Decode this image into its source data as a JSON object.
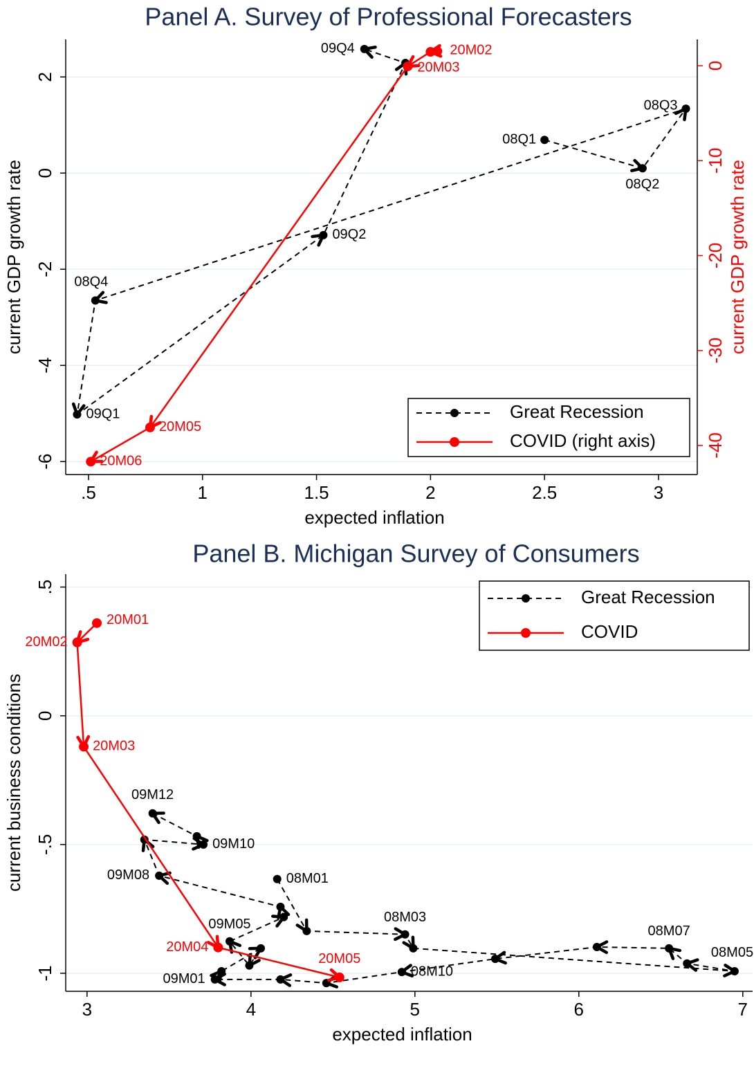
{
  "chart_data": [
    {
      "type": "line",
      "title": "Panel A. Survey of Professional Forecasters",
      "xlabel": "expected inflation",
      "ylabel": "current GDP growth rate",
      "y2label": "current GDP growth rate",
      "xlim": [
        0.4,
        3.17
      ],
      "xticks": [
        {
          "value": 0.5,
          "label": ".5"
        },
        1,
        1.5,
        2,
        2.5,
        3
      ],
      "ylim": [
        -6.27,
        2.78
      ],
      "yticks": [
        -6,
        -4,
        -2,
        0,
        2
      ],
      "y2lim": [
        -43.06,
        2.77
      ],
      "y2ticks": [
        -40,
        -30,
        -20,
        -10,
        0
      ],
      "grid": true,
      "legend": "lower right",
      "series": [
        {
          "name": "Great Recession",
          "color": "#000000",
          "dashed": true,
          "x": [
            2.5,
            2.93,
            3.12,
            0.53,
            0.45,
            1.53,
            1.89,
            1.71
          ],
          "values": [
            0.69,
            0.1,
            1.34,
            -2.65,
            -5.02,
            -1.29,
            2.29,
            2.58
          ],
          "point_labels": [
            "08Q1",
            "08Q2",
            "08Q3",
            "08Q4",
            "09Q1",
            "09Q2",
            null,
            "09Q4"
          ]
        },
        {
          "name": "COVID (right axis)",
          "color": "#ff0000",
          "dashed": false,
          "axis": "y2",
          "x": [
            2.03,
            2.0,
            1.9,
            0.77,
            0.51
          ],
          "values": [
            1.53,
            1.46,
            -0.07,
            -38.1,
            -41.7
          ],
          "point_labels": [
            null,
            "20M02",
            "20M03",
            "20M05",
            "20M06"
          ]
        }
      ]
    },
    {
      "type": "line",
      "title": "Panel B. Michigan Survey of Consumers",
      "xlabel": "expected inflation",
      "ylabel": "current business conditions",
      "xlim": [
        2.87,
        7.06
      ],
      "xticks": [
        3,
        4,
        5,
        6,
        7
      ],
      "ylim": [
        -1.07,
        0.55
      ],
      "yticks": [
        -1,
        {
          "value": -0.5,
          "label": "-.5"
        },
        0,
        {
          "value": 0.5,
          "label": ".5"
        }
      ],
      "grid": true,
      "legend": "upper right",
      "series": [
        {
          "name": "Great Recession",
          "color": "#000000",
          "dashed": true,
          "x": [
            4.16,
            4.34,
            4.94,
            4.99,
            6.95,
            6.66,
            6.55,
            6.11,
            5.49,
            4.92,
            4.46,
            4.18,
            3.78,
            3.82,
            4.06,
            3.99,
            3.87,
            4.2,
            4.18,
            3.44,
            3.35,
            3.71,
            3.67,
            3.4
          ],
          "values": [
            -0.634,
            -0.836,
            -0.849,
            -0.903,
            -0.992,
            -0.962,
            -0.903,
            -0.898,
            -0.944,
            -0.995,
            -1.038,
            -1.024,
            -1.024,
            -0.992,
            -0.903,
            -0.97,
            -0.876,
            -0.782,
            -0.742,
            -0.621,
            -0.481,
            -0.5,
            -0.468,
            -0.379
          ],
          "point_labels": [
            "08M01",
            null,
            "08M03",
            null,
            "08M05",
            null,
            "08M07",
            null,
            null,
            "08M10",
            null,
            null,
            "09M01",
            null,
            null,
            null,
            "09M05",
            null,
            null,
            "09M08",
            null,
            "09M10",
            null,
            "09M12"
          ]
        },
        {
          "name": "COVID",
          "color": "#ff0000",
          "dashed": false,
          "x": [
            3.06,
            2.94,
            2.98,
            3.8,
            4.54
          ],
          "values": [
            0.36,
            0.285,
            -0.12,
            -0.9,
            -1.016
          ],
          "point_labels": [
            "20M01",
            "20M02",
            "20M03",
            "20M04",
            "20M05"
          ]
        }
      ]
    }
  ]
}
